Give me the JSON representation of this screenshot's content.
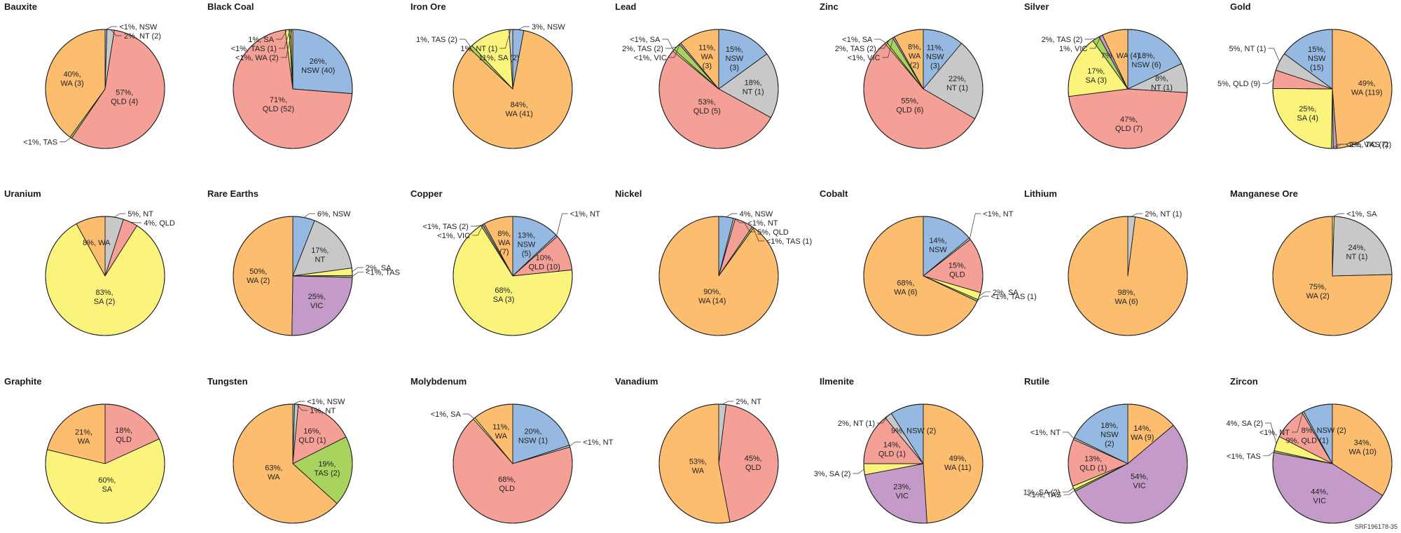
{
  "colors": {
    "NSW": "#95b9e0",
    "NT": "#c8c8c8",
    "QLD": "#f4a097",
    "SA": "#fbf47c",
    "TAS": "#a8d35e",
    "VIC": "#c49ac8",
    "WA": "#fcbd6e"
  },
  "reference": "SRF196178-35",
  "chart_data": [
    {
      "type": "pie",
      "title": "Bauxite",
      "slices": [
        {
          "state": "NSW",
          "value": 0.5,
          "label": "<1%, NSW"
        },
        {
          "state": "NT",
          "value": 2,
          "label": "2%, NT (2)"
        },
        {
          "state": "QLD",
          "value": 57,
          "label": "57%,\nQLD (4)"
        },
        {
          "state": "TAS",
          "value": 0.5,
          "label": "<1%, TAS"
        },
        {
          "state": "WA",
          "value": 40,
          "label": "40%,\nWA (3)"
        }
      ]
    },
    {
      "type": "pie",
      "title": "Black Coal",
      "slices": [
        {
          "state": "NSW",
          "value": 26,
          "label": "26%,\nNSW (40)"
        },
        {
          "state": "QLD",
          "value": 71,
          "label": "71%,\nQLD (52)"
        },
        {
          "state": "SA",
          "value": 1,
          "label": "1%, SA"
        },
        {
          "state": "TAS",
          "value": 0.5,
          "label": "<1%, TAS (1)"
        },
        {
          "state": "WA",
          "value": 0.5,
          "label": "<1%, WA (2)"
        }
      ]
    },
    {
      "type": "pie",
      "title": "Iron Ore",
      "slices": [
        {
          "state": "NSW",
          "value": 3,
          "label": "3%, NSW"
        },
        {
          "state": "WA",
          "value": 84,
          "label": "84%,\nWA (41)"
        },
        {
          "state": "TAS",
          "value": 1,
          "label": "1%, TAS (2)"
        },
        {
          "state": "SA",
          "value": 11,
          "label": "11%, SA (2)"
        },
        {
          "state": "NT",
          "value": 1,
          "label": "1%, NT (1)"
        }
      ]
    },
    {
      "type": "pie",
      "title": "Lead",
      "slices": [
        {
          "state": "NSW",
          "value": 15,
          "label": "15%,\nNSW\n(3)"
        },
        {
          "state": "NT",
          "value": 18,
          "label": "18%,\nNT (1)"
        },
        {
          "state": "QLD",
          "value": 53,
          "label": "53%,\nQLD (5)"
        },
        {
          "state": "SA",
          "value": 0.5,
          "label": "<1%, SA"
        },
        {
          "state": "TAS",
          "value": 2,
          "label": "2%, TAS (2)"
        },
        {
          "state": "VIC",
          "value": 0.5,
          "label": "<1%, VIC"
        },
        {
          "state": "WA",
          "value": 11,
          "label": "11%,\nWA\n(3)"
        }
      ]
    },
    {
      "type": "pie",
      "title": "Zinc",
      "slices": [
        {
          "state": "NSW",
          "value": 11,
          "label": "11%,\nNSW\n(3)"
        },
        {
          "state": "NT",
          "value": 22,
          "label": "22%,\nNT (1)"
        },
        {
          "state": "QLD",
          "value": 55,
          "label": "55%,\nQLD (6)"
        },
        {
          "state": "SA",
          "value": 0.5,
          "label": "<1%, SA"
        },
        {
          "state": "TAS",
          "value": 2,
          "label": "2%, TAS (2)"
        },
        {
          "state": "VIC",
          "value": 0.5,
          "label": "<1%, VIC"
        },
        {
          "state": "WA",
          "value": 8,
          "label": "8%,\nWA\n(2)"
        }
      ]
    },
    {
      "type": "pie",
      "title": "Silver",
      "slices": [
        {
          "state": "NSW",
          "value": 18,
          "label": "18%,\nNSW (6)"
        },
        {
          "state": "NT",
          "value": 8,
          "label": "8%,\nNT (1)"
        },
        {
          "state": "QLD",
          "value": 47,
          "label": "47%,\nQLD (7)"
        },
        {
          "state": "SA",
          "value": 17,
          "label": "17%,\nSA (3)"
        },
        {
          "state": "TAS",
          "value": 2,
          "label": "2%, TAS (2)"
        },
        {
          "state": "VIC",
          "value": 1,
          "label": "1%, VIC"
        },
        {
          "state": "WA",
          "value": 7,
          "label": "7%, WA (4)"
        }
      ]
    },
    {
      "type": "pie",
      "title": "Gold",
      "slices": [
        {
          "state": "WA",
          "value": 49,
          "label": "49%,\nWA (119)"
        },
        {
          "state": "VIC",
          "value": 1,
          "label": "1%, VIC (7)"
        },
        {
          "state": "TAS",
          "value": 0.5,
          "label": "<1%, TAS (2)"
        },
        {
          "state": "SA",
          "value": 25,
          "label": "25%,\nSA (4)"
        },
        {
          "state": "QLD",
          "value": 5,
          "label": "5%,\nQLD (9)"
        },
        {
          "state": "NT",
          "value": 5,
          "label": "5%, NT (1)"
        },
        {
          "state": "NSW",
          "value": 15,
          "label": "15%,\nNSW\n(15)"
        }
      ]
    },
    {
      "type": "pie",
      "title": "Uranium",
      "slices": [
        {
          "state": "NT",
          "value": 5,
          "label": "5%, NT"
        },
        {
          "state": "QLD",
          "value": 4,
          "label": "4%, QLD"
        },
        {
          "state": "SA",
          "value": 83,
          "label": "83%,\nSA (2)"
        },
        {
          "state": "WA",
          "value": 8,
          "label": "8%, WA"
        }
      ]
    },
    {
      "type": "pie",
      "title": "Rare Earths",
      "slices": [
        {
          "state": "NSW",
          "value": 6,
          "label": "6%, NSW"
        },
        {
          "state": "NT",
          "value": 17,
          "label": "17%,\nNT"
        },
        {
          "state": "SA",
          "value": 2,
          "label": "2%, SA"
        },
        {
          "state": "TAS",
          "value": 0.5,
          "label": "<1%, TAS"
        },
        {
          "state": "VIC",
          "value": 25,
          "label": "25%,\nVIC"
        },
        {
          "state": "WA",
          "value": 50,
          "label": "50%,\nWA (2)"
        }
      ]
    },
    {
      "type": "pie",
      "title": "Copper",
      "slices": [
        {
          "state": "NSW",
          "value": 13,
          "label": "13%,\nNSW\n(5)"
        },
        {
          "state": "NT",
          "value": 0.5,
          "label": "<1%, NT"
        },
        {
          "state": "QLD",
          "value": 10,
          "label": "10%,\nQLD (10)"
        },
        {
          "state": "SA",
          "value": 68,
          "label": "68%,\nSA (3)"
        },
        {
          "state": "TAS",
          "value": 0.5,
          "label": "<1%, TAS (2)"
        },
        {
          "state": "VIC",
          "value": 0.5,
          "label": "<1%, VIC"
        },
        {
          "state": "WA",
          "value": 8,
          "label": "8%,\nWA\n(7)"
        }
      ]
    },
    {
      "type": "pie",
      "title": "Nickel",
      "slices": [
        {
          "state": "NSW",
          "value": 4,
          "label": "4%, NSW"
        },
        {
          "state": "NT",
          "value": 0.5,
          "label": "<1%, NT"
        },
        {
          "state": "QLD",
          "value": 5,
          "label": "5%, QLD"
        },
        {
          "state": "TAS",
          "value": 0.5,
          "label": "<1%, TAS (1)"
        },
        {
          "state": "WA",
          "value": 90,
          "label": "90%,\nWA (14)"
        }
      ]
    },
    {
      "type": "pie",
      "title": "Cobalt",
      "slices": [
        {
          "state": "NSW",
          "value": 14,
          "label": "14%,\nNSW"
        },
        {
          "state": "NT",
          "value": 0.5,
          "label": "<1%, NT"
        },
        {
          "state": "QLD",
          "value": 15,
          "label": "15%,\nQLD"
        },
        {
          "state": "SA",
          "value": 2,
          "label": "2%, SA"
        },
        {
          "state": "TAS",
          "value": 0.5,
          "label": "<1%, TAS (1)"
        },
        {
          "state": "WA",
          "value": 68,
          "label": "68%,\nWA (6)"
        }
      ]
    },
    {
      "type": "pie",
      "title": "Lithium",
      "slices": [
        {
          "state": "NT",
          "value": 2,
          "label": "2%, NT (1)"
        },
        {
          "state": "WA",
          "value": 98,
          "label": "98%,\nWA (6)"
        }
      ]
    },
    {
      "type": "pie",
      "title": "Manganese Ore",
      "slices": [
        {
          "state": "SA",
          "value": 0.5,
          "label": "<1%, SA"
        },
        {
          "state": "NT",
          "value": 24,
          "label": "24%,\nNT (1)"
        },
        {
          "state": "WA",
          "value": 75,
          "label": "75%,\nWA (2)"
        }
      ]
    },
    {
      "type": "pie",
      "title": "Graphite",
      "slices": [
        {
          "state": "QLD",
          "value": 18,
          "label": "18%,\nQLD"
        },
        {
          "state": "SA",
          "value": 60,
          "label": "60%,\nSA"
        },
        {
          "state": "WA",
          "value": 21,
          "label": "21%,\nWA"
        }
      ]
    },
    {
      "type": "pie",
      "title": "Tungsten",
      "slices": [
        {
          "state": "NSW",
          "value": 0.5,
          "label": "<1%, NSW"
        },
        {
          "state": "NT",
          "value": 1,
          "label": "1%, NT"
        },
        {
          "state": "QLD",
          "value": 16,
          "label": "16%,\nQLD (1)"
        },
        {
          "state": "TAS",
          "value": 19,
          "label": "19%,\nTAS (2)"
        },
        {
          "state": "WA",
          "value": 63,
          "label": "63%,\nWA"
        }
      ]
    },
    {
      "type": "pie",
      "title": "Molybdenum",
      "slices": [
        {
          "state": "NSW",
          "value": 20,
          "label": "20%,\nNSW (1)"
        },
        {
          "state": "NT",
          "value": 0.5,
          "label": "<1%, NT"
        },
        {
          "state": "QLD",
          "value": 68,
          "label": "68%,\nQLD"
        },
        {
          "state": "SA",
          "value": 0.5,
          "label": "<1%, SA"
        },
        {
          "state": "WA",
          "value": 11,
          "label": "11%,\nWA"
        }
      ]
    },
    {
      "type": "pie",
      "title": "Vanadium",
      "slices": [
        {
          "state": "NT",
          "value": 2,
          "label": "2%, NT"
        },
        {
          "state": "QLD",
          "value": 45,
          "label": "45%,\nQLD"
        },
        {
          "state": "WA",
          "value": 53,
          "label": "53%,\nWA"
        }
      ]
    },
    {
      "type": "pie",
      "title": "Ilmenite",
      "slices": [
        {
          "state": "WA",
          "value": 49,
          "label": "49%,\nWA (11)"
        },
        {
          "state": "VIC",
          "value": 23,
          "label": "23%,\nVIC"
        },
        {
          "state": "SA",
          "value": 3,
          "label": "3%,\nSA (2)"
        },
        {
          "state": "QLD",
          "value": 14,
          "label": "14%,\nQLD (1)"
        },
        {
          "state": "NT",
          "value": 2,
          "label": "2%, NT (1)"
        },
        {
          "state": "NSW",
          "value": 9,
          "label": "9%, NSW (2)"
        }
      ]
    },
    {
      "type": "pie",
      "title": "Rutile",
      "slices": [
        {
          "state": "WA",
          "value": 14,
          "label": "14%,\nWA (9)"
        },
        {
          "state": "VIC",
          "value": 54,
          "label": "54%,\nVIC"
        },
        {
          "state": "TAS",
          "value": 0.5,
          "label": "<1%, TAS"
        },
        {
          "state": "SA",
          "value": 1,
          "label": "1%, SA (2)"
        },
        {
          "state": "QLD",
          "value": 13,
          "label": "13%,\nQLD (1)"
        },
        {
          "state": "NT",
          "value": 0.5,
          "label": "<1%, NT"
        },
        {
          "state": "NSW",
          "value": 18,
          "label": "18%,\nNSW\n(2)"
        }
      ]
    },
    {
      "type": "pie",
      "title": "Zircon",
      "slices": [
        {
          "state": "WA",
          "value": 34,
          "label": "34%,\nWA (10)"
        },
        {
          "state": "VIC",
          "value": 44,
          "label": "44%,\nVIC"
        },
        {
          "state": "TAS",
          "value": 0.5,
          "label": "<1%, TAS"
        },
        {
          "state": "SA",
          "value": 4,
          "label": "4%, SA (2)"
        },
        {
          "state": "QLD",
          "value": 9,
          "label": "9%, QLD (1)"
        },
        {
          "state": "NT",
          "value": 0.5,
          "label": "<1%, NT"
        },
        {
          "state": "NSW",
          "value": 8,
          "label": "8%, NSW (2)"
        }
      ]
    }
  ]
}
